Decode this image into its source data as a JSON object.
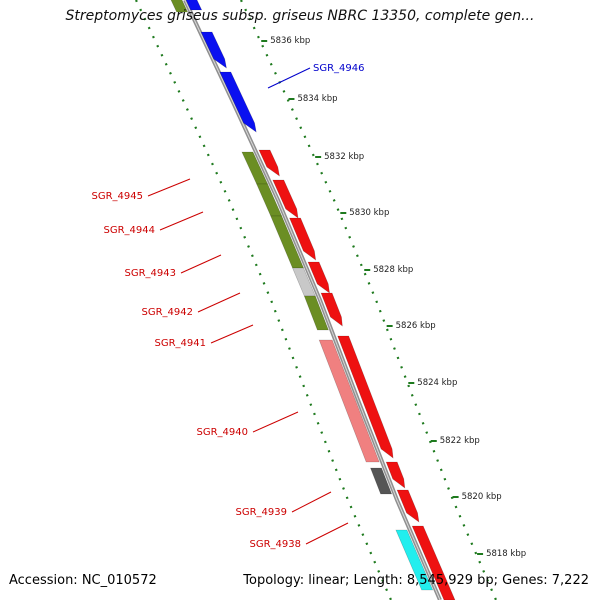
{
  "title": "Streptomyces griseus subsp. griseus NBRC 13350, complete gen...",
  "footer": {
    "accession": "Accession: NC_010572",
    "info": "Topology: linear; Length: 8,545,929 bp; Genes: 7,222"
  },
  "colors": {
    "backbone": "#909090",
    "scale_ticks": "#1e7a1e",
    "blue": "#0a10f0",
    "red": "#ee1111",
    "olive": "#6b8e23",
    "lightgray": "#c8c8c8",
    "salmon": "#f08080",
    "darkgray": "#555555",
    "cyan": "#22eeee",
    "label_red": "#cc0000",
    "label_blue": "#0000cc"
  },
  "scale_labels": [
    "5836 kbp",
    "5834 kbp",
    "5832 kbp",
    "5830 kbp",
    "5828 kbp",
    "5826 kbp",
    "5824 kbp",
    "5822 kbp",
    "5820 kbp",
    "5818 kbp"
  ],
  "gene_labels": [
    {
      "text": "SGR_4946",
      "color": "blue"
    },
    {
      "text": "SGR_4945",
      "color": "red"
    },
    {
      "text": "SGR_4944",
      "color": "red"
    },
    {
      "text": "SGR_4943",
      "color": "red"
    },
    {
      "text": "SGR_4942",
      "color": "red"
    },
    {
      "text": "SGR_4941",
      "color": "red"
    },
    {
      "text": "SGR_4940",
      "color": "red"
    },
    {
      "text": "SGR_4939",
      "color": "red"
    },
    {
      "text": "SGR_4938",
      "color": "red"
    }
  ],
  "features": [
    {
      "name": "gene-blue-1",
      "color": "blue"
    },
    {
      "name": "gene-blue-2",
      "color": "blue"
    },
    {
      "name": "gene-blue-3",
      "color": "blue"
    },
    {
      "name": "gene-red-1",
      "color": "red"
    },
    {
      "name": "gene-red-2",
      "color": "red"
    },
    {
      "name": "gene-red-3",
      "color": "red"
    },
    {
      "name": "gene-red-4",
      "color": "red"
    },
    {
      "name": "gene-red-5",
      "color": "red"
    },
    {
      "name": "gene-red-6",
      "color": "red"
    },
    {
      "name": "gene-red-7",
      "color": "red"
    },
    {
      "name": "gene-red-8",
      "color": "red"
    },
    {
      "name": "gene-red-9",
      "color": "red"
    },
    {
      "name": "gene-olive-top",
      "color": "olive"
    },
    {
      "name": "gene-olive-1",
      "color": "olive"
    },
    {
      "name": "gene-olive-2",
      "color": "olive"
    },
    {
      "name": "gene-olive-3",
      "color": "olive"
    },
    {
      "name": "gene-lightgray",
      "color": "lightgray"
    },
    {
      "name": "gene-olive-4",
      "color": "olive"
    },
    {
      "name": "gene-salmon",
      "color": "salmon"
    },
    {
      "name": "gene-darkgray",
      "color": "darkgray"
    },
    {
      "name": "gene-cyan",
      "color": "cyan"
    }
  ]
}
